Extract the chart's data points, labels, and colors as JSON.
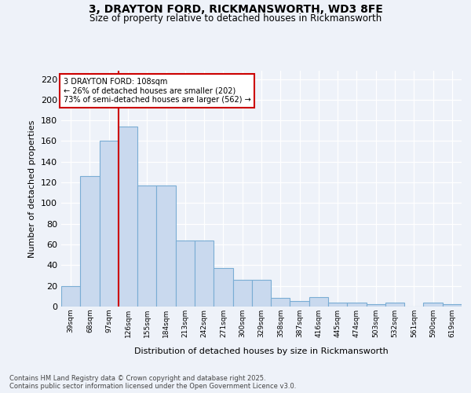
{
  "title1": "3, DRAYTON FORD, RICKMANSWORTH, WD3 8FE",
  "title2": "Size of property relative to detached houses in Rickmansworth",
  "xlabel": "Distribution of detached houses by size in Rickmansworth",
  "ylabel": "Number of detached properties",
  "categories": [
    "39sqm",
    "68sqm",
    "97sqm",
    "126sqm",
    "155sqm",
    "184sqm",
    "213sqm",
    "242sqm",
    "271sqm",
    "300sqm",
    "329sqm",
    "358sqm",
    "387sqm",
    "416sqm",
    "445sqm",
    "474sqm",
    "503sqm",
    "532sqm",
    "561sqm",
    "590sqm",
    "619sqm"
  ],
  "bar_values": [
    20,
    126,
    160,
    174,
    117,
    117,
    64,
    64,
    37,
    26,
    26,
    8,
    5,
    9,
    4,
    4,
    2,
    4,
    0,
    4,
    2
  ],
  "bar_color": "#c9d9ee",
  "bar_edge_color": "#7aadd4",
  "line_color": "#cc0000",
  "line_x_index": 2.5,
  "annotation_text": "3 DRAYTON FORD: 108sqm\n← 26% of detached houses are smaller (202)\n73% of semi-detached houses are larger (562) →",
  "annotation_box_facecolor": "#ffffff",
  "annotation_box_edgecolor": "#cc0000",
  "footer1": "Contains HM Land Registry data © Crown copyright and database right 2025.",
  "footer2": "Contains public sector information licensed under the Open Government Licence v3.0.",
  "bg_color": "#eef2f9",
  "ylim": [
    0,
    228
  ],
  "yticks": [
    0,
    20,
    40,
    60,
    80,
    100,
    120,
    140,
    160,
    180,
    200,
    220
  ]
}
